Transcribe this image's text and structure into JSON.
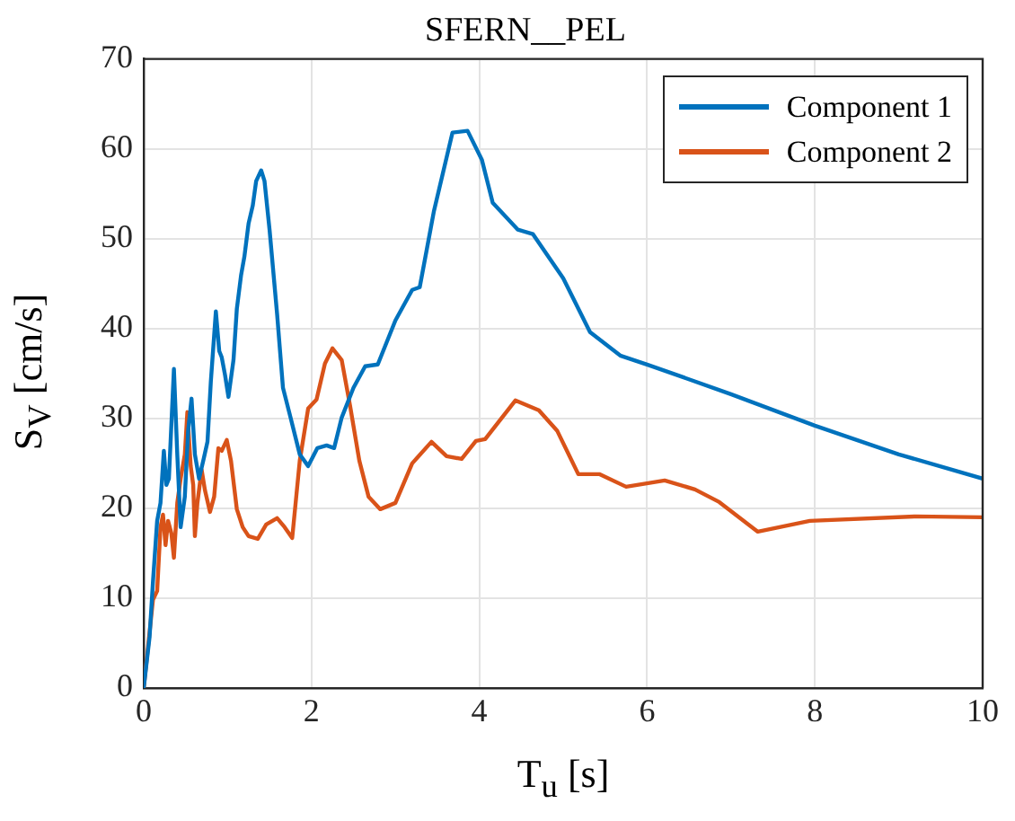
{
  "chart_data": {
    "type": "line",
    "title": "SFERN__PEL",
    "xlabel": "T$_{u}$ [s]",
    "ylabel": "S$_{V}$ [cm/s]",
    "xlim": [
      0,
      10
    ],
    "xticks": [
      0,
      2,
      4,
      6,
      8,
      10
    ],
    "ylim": [
      0,
      70
    ],
    "yticks": [
      0,
      10,
      20,
      30,
      40,
      50,
      60,
      70
    ],
    "grid": true,
    "legend": "top right",
    "marker": "none",
    "line_style": "solid",
    "series": [
      {
        "name": "Component 1",
        "color": "#0072bd",
        "x": [
          0,
          0.07,
          0.11,
          0.16,
          0.2,
          0.24,
          0.27,
          0.3,
          0.36,
          0.4,
          0.44,
          0.49,
          0.53,
          0.57,
          0.61,
          0.66,
          0.71,
          0.76,
          0.8,
          0.86,
          0.9,
          0.93,
          0.97,
          1.01,
          1.07,
          1.11,
          1.16,
          1.2,
          1.25,
          1.3,
          1.34,
          1.4,
          1.44,
          1.5,
          1.59,
          1.66,
          1.75,
          1.86,
          1.96,
          2.07,
          2.18,
          2.27,
          2.36,
          2.5,
          2.64,
          2.79,
          3.0,
          3.2,
          3.29,
          3.46,
          3.68,
          3.86,
          4.03,
          4.16,
          4.46,
          4.64,
          5.0,
          5.32,
          5.68,
          6,
          7,
          8,
          9,
          10
        ],
        "values": [
          0,
          5.7,
          11.8,
          18.6,
          20.6,
          26.4,
          22.6,
          23.3,
          35.5,
          26,
          17.9,
          21.3,
          28.7,
          32.2,
          26,
          23.3,
          25.3,
          27.4,
          34.1,
          41.9,
          37.5,
          36.8,
          34.8,
          32.4,
          36.5,
          42.2,
          45.9,
          48,
          51.7,
          53.7,
          56.4,
          57.6,
          56.4,
          51,
          41.6,
          33.4,
          30.1,
          26,
          24.7,
          26.7,
          27,
          26.7,
          30.1,
          33.4,
          35.8,
          36,
          40.9,
          44.3,
          44.6,
          53.1,
          61.8,
          62,
          58.8,
          54,
          51,
          50.5,
          45.6,
          39.6,
          37,
          36,
          32.7,
          29.2,
          26,
          23.3
        ]
      },
      {
        "name": "Component 2",
        "color": "#d95319",
        "x": [
          0,
          0.11,
          0.16,
          0.2,
          0.23,
          0.26,
          0.29,
          0.33,
          0.36,
          0.4,
          0.44,
          0.49,
          0.52,
          0.56,
          0.59,
          0.61,
          0.64,
          0.69,
          0.73,
          0.79,
          0.84,
          0.89,
          0.93,
          0.99,
          1.04,
          1.11,
          1.18,
          1.25,
          1.36,
          1.46,
          1.59,
          1.68,
          1.77,
          1.86,
          1.96,
          2.06,
          2.16,
          2.25,
          2.36,
          2.46,
          2.57,
          2.68,
          2.82,
          3.0,
          3.2,
          3.43,
          3.61,
          3.79,
          3.96,
          4.07,
          4.43,
          4.71,
          4.93,
          5.18,
          5.43,
          5.75,
          6.21,
          6.57,
          6.86,
          7.32,
          7.94,
          9.2,
          10
        ],
        "values": [
          0,
          9.8,
          10.8,
          17.9,
          19.3,
          15.9,
          18.6,
          17.2,
          14.5,
          20.6,
          23.3,
          26,
          30.7,
          24.7,
          22.6,
          16.9,
          20.6,
          24.3,
          22,
          19.6,
          21.3,
          26.7,
          26.4,
          27.6,
          25.3,
          19.9,
          17.9,
          16.9,
          16.6,
          18.2,
          18.9,
          17.9,
          16.7,
          25.3,
          31.1,
          32.1,
          36.1,
          37.8,
          36.5,
          31.4,
          25.3,
          21.3,
          19.9,
          20.6,
          25,
          27.4,
          25.8,
          25.5,
          27.5,
          27.7,
          32,
          30.9,
          28.6,
          23.8,
          23.8,
          22.4,
          23.1,
          22.1,
          20.7,
          17.4,
          18.6,
          19.1,
          19
        ]
      }
    ]
  }
}
